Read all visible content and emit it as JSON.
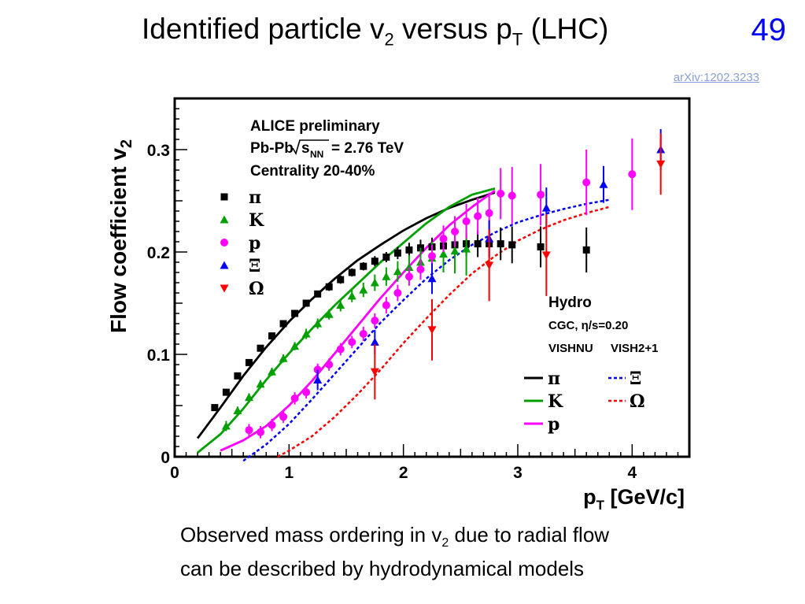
{
  "slide": {
    "title_main": "Identified particle v",
    "title_sub1": "2",
    "title_mid": " versus p",
    "title_sub2": "T",
    "title_end": " (LHC)",
    "page_number": "49",
    "reference": "arXiv:1202.3233",
    "caption_line1_a": "Observed mass ordering in v",
    "caption_line1_sub": "2",
    "caption_line1_b": " due to radial flow",
    "caption_line2": "can be described by hydrodynamical models"
  },
  "chart_data": {
    "type": "scatter",
    "xlabel": "p",
    "xlabel_sub": "T",
    "xlabel_unit": " [GeV/c]",
    "ylabel": "Flow coefficient v",
    "ylabel_sub": "2",
    "xlim": [
      0,
      4.5
    ],
    "ylim": [
      0,
      0.35
    ],
    "xticks": [
      0,
      1,
      2,
      3,
      4
    ],
    "yticks": [
      0,
      0.1,
      0.2,
      0.3
    ],
    "yticklabels": [
      "0",
      "0.1",
      "0.2",
      "0.3"
    ],
    "annotation_lines": [
      "ALICE preliminary",
      "Pb-Pb",
      "= 2.76 TeV",
      "Centrality 20-40%"
    ],
    "annotation_sqrt": "s",
    "annotation_sqrt_sub": "NN",
    "hydro_title": "Hydro",
    "hydro_params": "CGC, η/s=0.20",
    "model_left": "VISHNU",
    "model_right": "VISH2+1",
    "series": [
      {
        "name": "π",
        "color": "#000000",
        "marker": "square",
        "x": [
          0.35,
          0.45,
          0.55,
          0.65,
          0.75,
          0.85,
          0.95,
          1.05,
          1.15,
          1.25,
          1.35,
          1.45,
          1.55,
          1.65,
          1.75,
          1.85,
          1.95,
          2.05,
          2.15,
          2.25,
          2.35,
          2.45,
          2.55,
          2.65,
          2.75,
          2.85,
          2.95,
          3.2,
          3.6
        ],
        "y": [
          0.048,
          0.063,
          0.079,
          0.092,
          0.106,
          0.118,
          0.13,
          0.14,
          0.15,
          0.159,
          0.166,
          0.173,
          0.18,
          0.186,
          0.191,
          0.195,
          0.199,
          0.202,
          0.204,
          0.205,
          0.206,
          0.207,
          0.208,
          0.208,
          0.208,
          0.208,
          0.207,
          0.205,
          0.202
        ],
        "err": [
          0.003,
          0.003,
          0.003,
          0.003,
          0.003,
          0.003,
          0.003,
          0.003,
          0.003,
          0.003,
          0.004,
          0.004,
          0.004,
          0.004,
          0.005,
          0.005,
          0.006,
          0.007,
          0.008,
          0.009,
          0.01,
          0.011,
          0.012,
          0.013,
          0.014,
          0.016,
          0.018,
          0.02,
          0.022
        ]
      },
      {
        "name": "K",
        "color": "#00a000",
        "marker": "triangle-up",
        "x": [
          0.45,
          0.55,
          0.65,
          0.75,
          0.85,
          0.95,
          1.05,
          1.15,
          1.25,
          1.35,
          1.45,
          1.55,
          1.65,
          1.75,
          1.85,
          1.95,
          2.05,
          2.15,
          2.25,
          2.35,
          2.45,
          2.55
        ],
        "y": [
          0.03,
          0.045,
          0.058,
          0.071,
          0.083,
          0.096,
          0.108,
          0.12,
          0.13,
          0.139,
          0.148,
          0.157,
          0.163,
          0.17,
          0.176,
          0.181,
          0.185,
          0.19,
          0.194,
          0.198,
          0.201,
          0.203
        ],
        "err": [
          0.005,
          0.004,
          0.004,
          0.004,
          0.004,
          0.004,
          0.004,
          0.005,
          0.005,
          0.005,
          0.006,
          0.006,
          0.007,
          0.008,
          0.009,
          0.01,
          0.012,
          0.014,
          0.016,
          0.018,
          0.022,
          0.026
        ]
      },
      {
        "name": "p",
        "color": "#ff00ff",
        "marker": "circle",
        "x": [
          0.65,
          0.75,
          0.85,
          0.95,
          1.05,
          1.15,
          1.25,
          1.35,
          1.45,
          1.55,
          1.65,
          1.75,
          1.85,
          1.95,
          2.05,
          2.15,
          2.25,
          2.35,
          2.45,
          2.55,
          2.65,
          2.75,
          2.85,
          2.95,
          3.2,
          3.6,
          4.0
        ],
        "y": [
          0.026,
          0.024,
          0.031,
          0.039,
          0.057,
          0.063,
          0.085,
          0.09,
          0.105,
          0.112,
          0.12,
          0.133,
          0.148,
          0.16,
          0.176,
          0.183,
          0.196,
          0.213,
          0.22,
          0.23,
          0.235,
          0.238,
          0.257,
          0.255,
          0.256,
          0.268,
          0.276
        ],
        "err": [
          0.006,
          0.006,
          0.006,
          0.006,
          0.006,
          0.006,
          0.006,
          0.006,
          0.006,
          0.006,
          0.007,
          0.007,
          0.008,
          0.008,
          0.009,
          0.01,
          0.011,
          0.013,
          0.015,
          0.017,
          0.018,
          0.02,
          0.025,
          0.028,
          0.03,
          0.032,
          0.035
        ]
      },
      {
        "name": "Ξ",
        "color": "#0000ff",
        "marker": "triangle-up",
        "x": [
          1.25,
          1.75,
          2.25,
          2.75,
          3.25,
          3.75,
          4.25
        ],
        "y": [
          0.075,
          0.112,
          0.174,
          0.213,
          0.243,
          0.266,
          0.3
        ],
        "err": [
          0.01,
          0.012,
          0.015,
          0.018,
          0.02,
          0.018,
          0.02
        ]
      },
      {
        "name": "Ω",
        "color": "#ff0000",
        "marker": "triangle-down",
        "x": [
          1.75,
          2.25,
          2.75,
          3.25,
          4.25
        ],
        "y": [
          0.083,
          0.124,
          0.187,
          0.197,
          0.286
        ],
        "err": [
          0.027,
          0.03,
          0.035,
          0.04,
          0.03
        ]
      }
    ],
    "curves": [
      {
        "name": "π",
        "color": "#000000",
        "dash": false,
        "x": [
          0.2,
          0.4,
          0.6,
          0.8,
          1.0,
          1.2,
          1.4,
          1.6,
          1.8,
          2.0,
          2.2,
          2.4,
          2.6,
          2.8
        ],
        "y": [
          0.018,
          0.048,
          0.079,
          0.107,
          0.132,
          0.154,
          0.174,
          0.192,
          0.207,
          0.221,
          0.233,
          0.243,
          0.251,
          0.258
        ]
      },
      {
        "name": "K",
        "color": "#00a000",
        "dash": false,
        "x": [
          0.2,
          0.4,
          0.6,
          0.8,
          1.0,
          1.2,
          1.4,
          1.6,
          1.8,
          2.0,
          2.2,
          2.4,
          2.6,
          2.8
        ],
        "y": [
          0.004,
          0.022,
          0.047,
          0.075,
          0.101,
          0.125,
          0.148,
          0.169,
          0.19,
          0.209,
          0.228,
          0.244,
          0.256,
          0.262
        ]
      },
      {
        "name": "p",
        "color": "#ff00ff",
        "dash": false,
        "x": [
          0.4,
          0.6,
          0.8,
          1.0,
          1.2,
          1.4,
          1.6,
          1.8,
          2.0,
          2.2,
          2.4,
          2.6,
          2.8
        ],
        "y": [
          0.006,
          0.016,
          0.03,
          0.05,
          0.074,
          0.101,
          0.128,
          0.155,
          0.18,
          0.204,
          0.226,
          0.244,
          0.26
        ]
      },
      {
        "name": "Ξ",
        "color": "#0000ff",
        "dash": true,
        "x": [
          0.6,
          0.8,
          1.0,
          1.2,
          1.4,
          1.6,
          1.8,
          2.0,
          2.2,
          2.4,
          2.6,
          2.8,
          3.0,
          3.2,
          3.4,
          3.6,
          3.8
        ],
        "y": [
          -0.004,
          0.012,
          0.032,
          0.056,
          0.081,
          0.106,
          0.131,
          0.153,
          0.174,
          0.192,
          0.207,
          0.219,
          0.229,
          0.236,
          0.242,
          0.247,
          0.251
        ]
      },
      {
        "name": "Ω",
        "color": "#ff0000",
        "dash": true,
        "x": [
          0.9,
          1.0,
          1.2,
          1.4,
          1.6,
          1.8,
          2.0,
          2.2,
          2.4,
          2.6,
          2.8,
          3.0,
          3.2,
          3.4,
          3.6,
          3.8
        ],
        "y": [
          0.0,
          0.006,
          0.02,
          0.039,
          0.061,
          0.085,
          0.111,
          0.135,
          0.158,
          0.179,
          0.196,
          0.211,
          0.222,
          0.231,
          0.238,
          0.244
        ]
      }
    ],
    "legend_data": [
      {
        "name": "π",
        "color": "#000000",
        "marker": "square"
      },
      {
        "name": "K",
        "color": "#00a000",
        "marker": "triangle-up"
      },
      {
        "name": "p",
        "color": "#ff00ff",
        "marker": "circle"
      },
      {
        "name": "Ξ",
        "color": "#0000ff",
        "marker": "triangle-up"
      },
      {
        "name": "Ω",
        "color": "#ff0000",
        "marker": "triangle-down"
      }
    ],
    "legend_models_left": [
      {
        "name": "π",
        "color": "#000000"
      },
      {
        "name": "K",
        "color": "#00a000"
      },
      {
        "name": "p",
        "color": "#ff00ff"
      }
    ],
    "legend_models_right": [
      {
        "name": "Ξ",
        "color": "#0000ff"
      },
      {
        "name": "Ω",
        "color": "#ff0000"
      }
    ]
  }
}
